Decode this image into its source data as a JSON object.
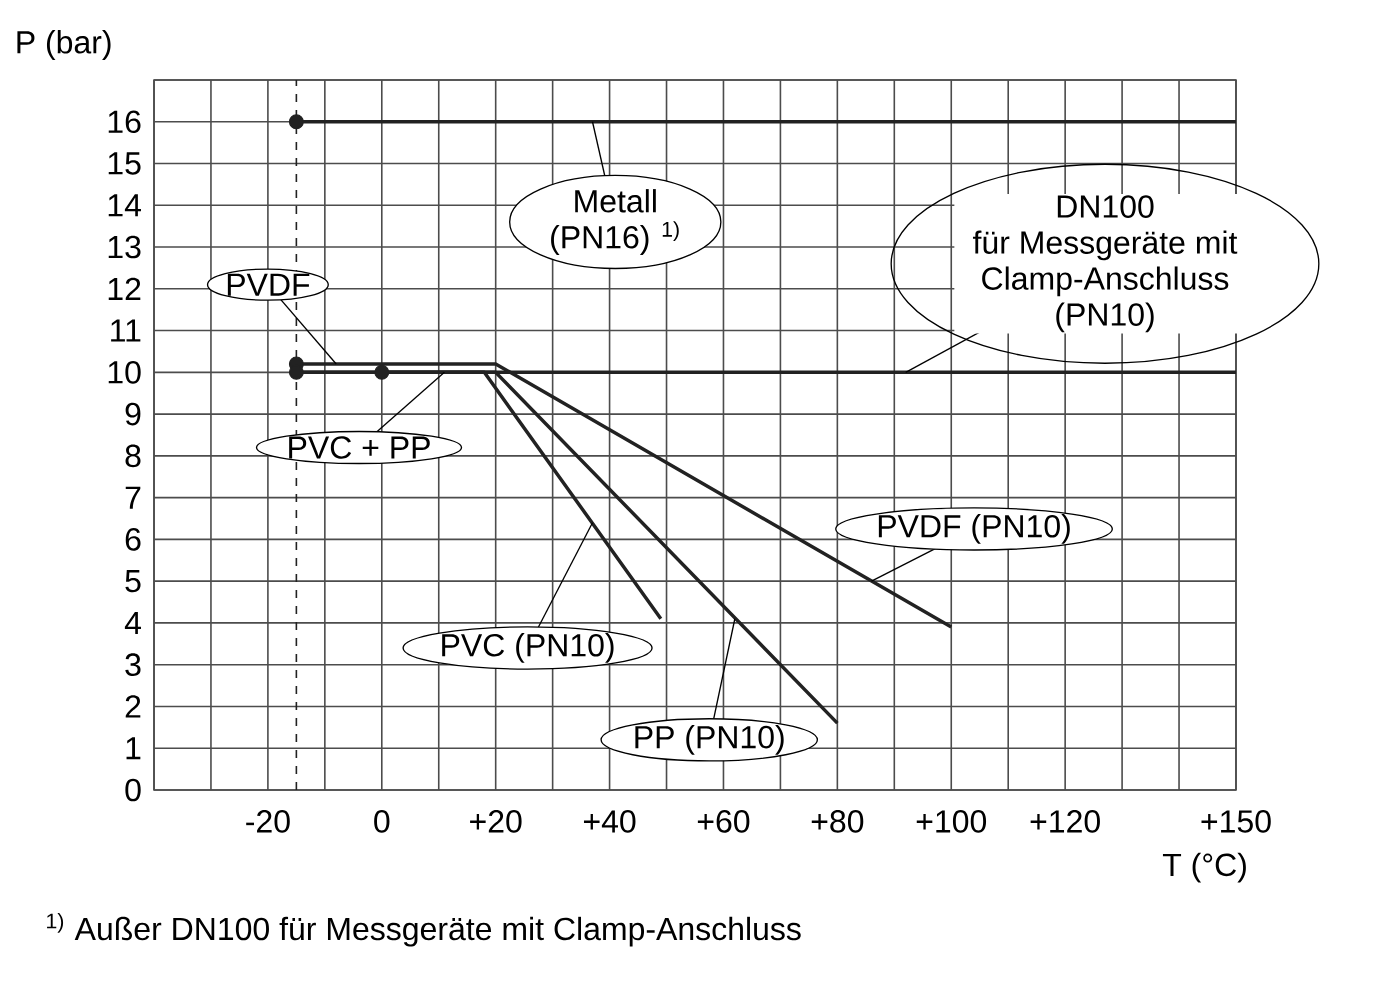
{
  "chart_data": {
    "type": "line",
    "xlabel": "T (°C)",
    "ylabel": "P (bar)",
    "xlim": [
      -40,
      150
    ],
    "ylim": [
      0,
      17
    ],
    "xticks": [
      {
        "value": -40,
        "label": null
      },
      {
        "value": -30,
        "label": null
      },
      {
        "value": -20,
        "label": "-20"
      },
      {
        "value": -10,
        "label": null
      },
      0,
      {
        "value": 10,
        "label": null
      },
      {
        "value": 20,
        "label": "+20"
      },
      {
        "value": 30,
        "label": null
      },
      {
        "value": 40,
        "label": "+40"
      },
      {
        "value": 50,
        "label": null
      },
      {
        "value": 60,
        "label": "+60"
      },
      {
        "value": 70,
        "label": null
      },
      {
        "value": 80,
        "label": "+80"
      },
      {
        "value": 90,
        "label": null
      },
      {
        "value": 100,
        "label": "+100"
      },
      {
        "value": 110,
        "label": null
      },
      {
        "value": 120,
        "label": "+120"
      },
      {
        "value": 130,
        "label": null
      },
      {
        "value": 140,
        "label": null
      },
      {
        "value": 150,
        "label": "+150"
      }
    ],
    "yticks": [
      0,
      1,
      2,
      3,
      4,
      5,
      6,
      7,
      8,
      9,
      10,
      11,
      12,
      13,
      14,
      15,
      16,
      {
        "value": 17,
        "label": null
      }
    ],
    "grid": true,
    "series": [
      {
        "color": "#222222",
        "x": [
          -15,
          150
        ],
        "values": [
          16,
          16
        ]
      },
      {
        "color": "#222222",
        "x": [
          -15,
          150
        ],
        "values": [
          10,
          10
        ]
      },
      {
        "color": "#222222",
        "x": [
          -15,
          20,
          100
        ],
        "values": [
          10.2,
          10.2,
          3.9
        ]
      },
      {
        "color": "#222222",
        "x": [
          0,
          18,
          49
        ],
        "values": [
          10,
          10,
          4.1
        ]
      },
      {
        "color": "#222222",
        "x": [
          -15,
          20,
          80
        ],
        "values": [
          10,
          10,
          1.6
        ]
      },
      {
        "type": "scatter",
        "marker": "circle",
        "color": "#222222",
        "x": [
          -15,
          -15,
          -15,
          0
        ],
        "values": [
          16,
          10.2,
          10,
          10
        ]
      }
    ],
    "ref_lines": [
      {
        "axis": "x",
        "value": -15,
        "line_style": "dashed",
        "color": "#222222"
      }
    ],
    "annotations": [
      {
        "text": "PVDF",
        "x": -8,
        "y": 10.2
      },
      {
        "text": "PVC + PP",
        "x": 11,
        "y": 10
      },
      {
        "text": "Metall (PN16) $^{1)}$",
        "x": 37,
        "y": 16
      },
      {
        "text": "DN100 für Messgeräte mit Clamp-Anschluss (PN10)",
        "x": 92,
        "y": 10
      },
      {
        "text": "PVDF (PN10)",
        "x": 86,
        "y": 5.0
      },
      {
        "text": "PVC (PN10)",
        "x": 37,
        "y": 6.4
      },
      {
        "text": "PP (PN10)",
        "x": 62,
        "y": 4.1
      },
      "$^{1)}$ Außer DN100 für Messgeräte mit Clamp-Anschluss"
    ]
  }
}
